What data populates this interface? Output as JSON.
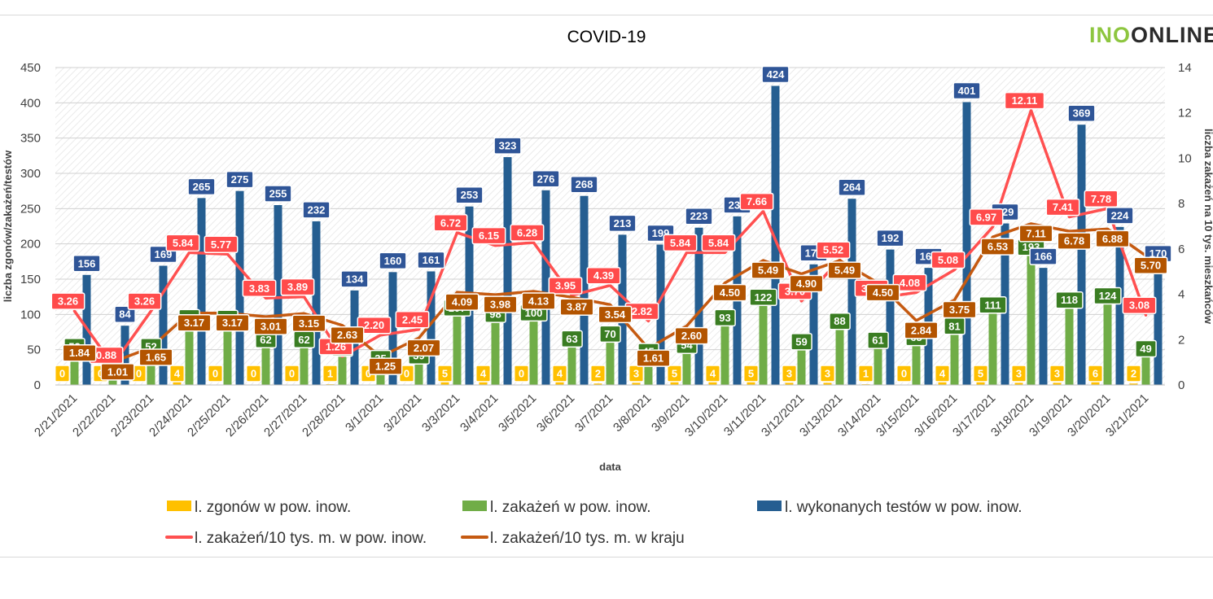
{
  "header": {
    "title": "COVID-19",
    "logo_text_a": "INO",
    "logo_text_b": "ONLINE"
  },
  "chart_data": {
    "type": "bar",
    "title": "COVID-19",
    "xlabel": "data",
    "ylabel": "liczba zgonów/zakażeń/testów",
    "y2label": "liczba zakażeń na 10 tys. mieszkańców",
    "ylim": [
      0,
      450
    ],
    "y2lim": [
      0,
      14
    ],
    "yticks": [
      0,
      50,
      100,
      150,
      200,
      250,
      300,
      350,
      400,
      450
    ],
    "y2ticks": [
      0,
      2,
      4,
      6,
      8,
      10,
      12,
      14
    ],
    "grid": true,
    "legend_position": "bottom",
    "categories": [
      "2/21/2021",
      "2/22/2021",
      "2/23/2021",
      "2/24/2021",
      "2/25/2021",
      "2/26/2021",
      "2/27/2021",
      "2/28/2021",
      "3/1/2021",
      "3/2/2021",
      "3/3/2021",
      "3/4/2021",
      "3/5/2021",
      "3/6/2021",
      "3/7/2021",
      "3/8/2021",
      "3/9/2021",
      "3/10/2021",
      "3/11/2021",
      "3/12/2021",
      "3/13/2021",
      "3/14/2021",
      "3/15/2021",
      "3/16/2021",
      "3/17/2021",
      "3/18/2021",
      "3/19/2021",
      "3/20/2021",
      "3/21/2021"
    ],
    "series": [
      {
        "name": "l. zgonów w pow. inow.",
        "type": "bar",
        "axis": "left",
        "color": "#ffc000",
        "values": [
          0,
          0,
          0,
          4,
          0,
          0,
          0,
          1,
          0,
          0,
          5,
          4,
          0,
          4,
          2,
          3,
          5,
          4,
          5,
          3,
          3,
          1,
          0,
          4,
          5,
          3,
          3,
          6,
          2
        ]
      },
      {
        "name": "l. zakażeń w pow. inow.",
        "type": "bar",
        "axis": "left",
        "color": "#70ad47",
        "values": [
          52,
          14,
          52,
          93,
          92,
          62,
          62,
          50,
          35,
          39,
          107,
          98,
          100,
          63,
          70,
          45,
          54,
          93,
          122,
          59,
          88,
          61,
          65,
          81,
          111,
          193,
          118,
          124,
          49
        ]
      },
      {
        "name": "l. wykonanych testów w pow. inow.",
        "type": "bar",
        "axis": "left",
        "color": "#255e91",
        "values": [
          156,
          84,
          169,
          265,
          275,
          255,
          232,
          134,
          160,
          161,
          253,
          323,
          276,
          268,
          213,
          199,
          223,
          239,
          424,
          171,
          264,
          192,
          166,
          401,
          229,
          166,
          369,
          224,
          170
        ]
      },
      {
        "name": "l. zakażeń/10 tys. m. w pow. inow.",
        "type": "line",
        "axis": "right",
        "color": "#ff5050",
        "values": [
          3.26,
          0.88,
          3.26,
          5.84,
          5.77,
          3.83,
          3.89,
          1.26,
          2.2,
          2.45,
          6.72,
          6.15,
          6.28,
          3.95,
          4.39,
          2.82,
          5.84,
          5.84,
          7.66,
          3.7,
          5.52,
          3.83,
          4.08,
          5.08,
          6.97,
          12.11,
          7.41,
          7.78,
          3.08
        ]
      },
      {
        "name": "l. zakażeń/10 tys. m. w kraju",
        "type": "line",
        "axis": "right",
        "color": "#c55a11",
        "values": [
          1.84,
          1.01,
          1.65,
          3.17,
          3.17,
          3.01,
          3.15,
          2.63,
          1.25,
          2.07,
          4.09,
          3.98,
          4.13,
          3.87,
          3.54,
          1.61,
          2.6,
          4.5,
          5.49,
          4.9,
          5.49,
          4.5,
          2.84,
          3.75,
          6.53,
          7.11,
          6.78,
          6.88,
          5.7
        ]
      }
    ]
  }
}
